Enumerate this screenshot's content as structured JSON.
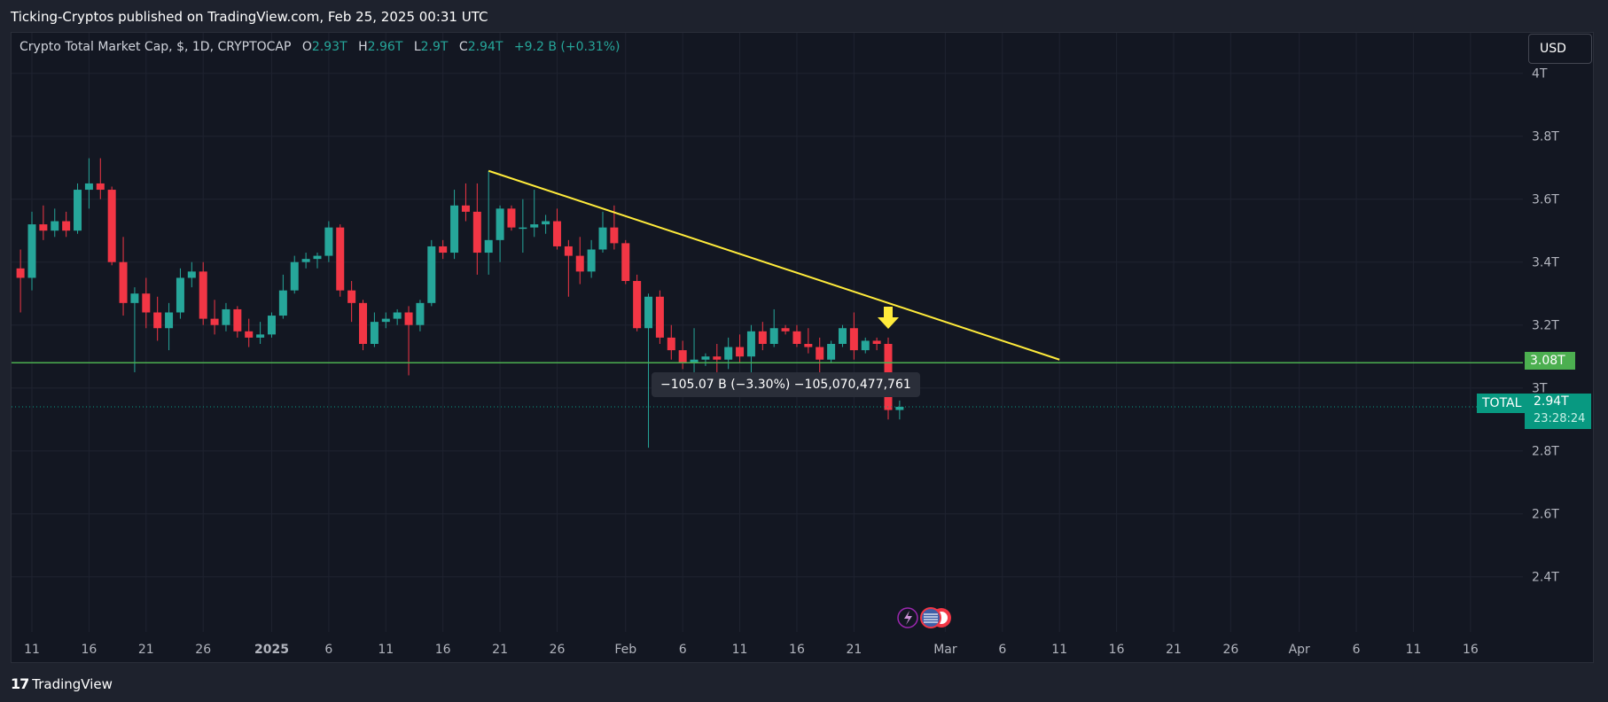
{
  "header": {
    "publisher": "Ticking-Cryptos published on TradingView.com, Feb 25, 2025 00:31 UTC"
  },
  "legend": {
    "title": "Crypto Total Market Cap, $, 1D, CRYPTOCAP",
    "open_label": "O",
    "open": "2.93T",
    "high_label": "H",
    "high": "2.96T",
    "low_label": "L",
    "low": "2.9T",
    "close_label": "C",
    "close": "2.94T",
    "change": "+9.2 B (+0.31%)"
  },
  "currency_button": "USD",
  "footer": {
    "logo": "17",
    "brand": "TradingView"
  },
  "annotation": {
    "measure_label": "−105.07 B (−3.30%) −105,070,477,761"
  },
  "price_tags": {
    "support_level": "3.08T",
    "symbol": "TOTAL",
    "last_price": "2.94T",
    "countdown": "23:28:24"
  },
  "colors": {
    "background": "#131722",
    "up": "#26a69a",
    "down": "#f23645",
    "trendline": "#ffeb3b",
    "support": "#4caf50",
    "arrow": "#ffeb3b"
  },
  "chart_data": {
    "type": "candlestick",
    "symbol": "CRYPTOCAP:TOTAL",
    "interval": "1D",
    "unit": "T (trillion USD)",
    "y_ticks": [
      2.4,
      2.6,
      2.8,
      3.0,
      3.2,
      3.4,
      3.6,
      3.8,
      4.0
    ],
    "y_tick_labels": [
      "2.4T",
      "2.6T",
      "2.8T",
      "3T",
      "3.2T",
      "3.4T",
      "3.6T",
      "3.8T",
      "4T"
    ],
    "x_tick_labels": [
      {
        "date": "2024-12-11",
        "label": "11"
      },
      {
        "date": "2024-12-16",
        "label": "16"
      },
      {
        "date": "2024-12-21",
        "label": "21"
      },
      {
        "date": "2024-12-26",
        "label": "26"
      },
      {
        "date": "2025-01-01",
        "label": "2025",
        "bold": true
      },
      {
        "date": "2025-01-06",
        "label": "6"
      },
      {
        "date": "2025-01-11",
        "label": "11"
      },
      {
        "date": "2025-01-16",
        "label": "16"
      },
      {
        "date": "2025-01-21",
        "label": "21"
      },
      {
        "date": "2025-01-26",
        "label": "26"
      },
      {
        "date": "2025-02-01",
        "label": "Feb"
      },
      {
        "date": "2025-02-06",
        "label": "6"
      },
      {
        "date": "2025-02-11",
        "label": "11"
      },
      {
        "date": "2025-02-16",
        "label": "16"
      },
      {
        "date": "2025-02-21",
        "label": "21"
      },
      {
        "date": "2025-03-01",
        "label": "Mar"
      },
      {
        "date": "2025-03-06",
        "label": "6"
      },
      {
        "date": "2025-03-11",
        "label": "11"
      },
      {
        "date": "2025-03-16",
        "label": "16"
      },
      {
        "date": "2025-03-21",
        "label": "21"
      },
      {
        "date": "2025-03-26",
        "label": "26"
      },
      {
        "date": "2025-04-01",
        "label": "Apr"
      },
      {
        "date": "2025-04-06",
        "label": "6"
      },
      {
        "date": "2025-04-11",
        "label": "11"
      },
      {
        "date": "2025-04-16",
        "label": "16"
      }
    ],
    "ohlc": [
      {
        "date": "2024-12-10",
        "o": 3.38,
        "h": 3.44,
        "l": 3.24,
        "c": 3.35
      },
      {
        "date": "2024-12-11",
        "o": 3.35,
        "h": 3.56,
        "l": 3.31,
        "c": 3.52
      },
      {
        "date": "2024-12-12",
        "o": 3.52,
        "h": 3.58,
        "l": 3.47,
        "c": 3.5
      },
      {
        "date": "2024-12-13",
        "o": 3.5,
        "h": 3.57,
        "l": 3.48,
        "c": 3.53
      },
      {
        "date": "2024-12-14",
        "o": 3.53,
        "h": 3.56,
        "l": 3.48,
        "c": 3.5
      },
      {
        "date": "2024-12-15",
        "o": 3.5,
        "h": 3.65,
        "l": 3.49,
        "c": 3.63
      },
      {
        "date": "2024-12-16",
        "o": 3.63,
        "h": 3.73,
        "l": 3.57,
        "c": 3.65
      },
      {
        "date": "2024-12-17",
        "o": 3.65,
        "h": 3.73,
        "l": 3.6,
        "c": 3.63
      },
      {
        "date": "2024-12-18",
        "o": 3.63,
        "h": 3.64,
        "l": 3.39,
        "c": 3.4
      },
      {
        "date": "2024-12-19",
        "o": 3.4,
        "h": 3.48,
        "l": 3.23,
        "c": 3.27
      },
      {
        "date": "2024-12-20",
        "o": 3.27,
        "h": 3.32,
        "l": 3.05,
        "c": 3.3
      },
      {
        "date": "2024-12-21",
        "o": 3.3,
        "h": 3.35,
        "l": 3.19,
        "c": 3.24
      },
      {
        "date": "2024-12-22",
        "o": 3.24,
        "h": 3.29,
        "l": 3.15,
        "c": 3.19
      },
      {
        "date": "2024-12-23",
        "o": 3.19,
        "h": 3.27,
        "l": 3.12,
        "c": 3.24
      },
      {
        "date": "2024-12-24",
        "o": 3.24,
        "h": 3.38,
        "l": 3.22,
        "c": 3.35
      },
      {
        "date": "2024-12-25",
        "o": 3.35,
        "h": 3.4,
        "l": 3.32,
        "c": 3.37
      },
      {
        "date": "2024-12-26",
        "o": 3.37,
        "h": 3.4,
        "l": 3.2,
        "c": 3.22
      },
      {
        "date": "2024-12-27",
        "o": 3.22,
        "h": 3.28,
        "l": 3.17,
        "c": 3.2
      },
      {
        "date": "2024-12-28",
        "o": 3.2,
        "h": 3.27,
        "l": 3.18,
        "c": 3.25
      },
      {
        "date": "2024-12-29",
        "o": 3.25,
        "h": 3.26,
        "l": 3.16,
        "c": 3.18
      },
      {
        "date": "2024-12-30",
        "o": 3.18,
        "h": 3.22,
        "l": 3.13,
        "c": 3.16
      },
      {
        "date": "2024-12-31",
        "o": 3.16,
        "h": 3.21,
        "l": 3.14,
        "c": 3.17
      },
      {
        "date": "2025-01-01",
        "o": 3.17,
        "h": 3.24,
        "l": 3.16,
        "c": 3.23
      },
      {
        "date": "2025-01-02",
        "o": 3.23,
        "h": 3.36,
        "l": 3.22,
        "c": 3.31
      },
      {
        "date": "2025-01-03",
        "o": 3.31,
        "h": 3.42,
        "l": 3.3,
        "c": 3.4
      },
      {
        "date": "2025-01-04",
        "o": 3.4,
        "h": 3.43,
        "l": 3.38,
        "c": 3.41
      },
      {
        "date": "2025-01-05",
        "o": 3.41,
        "h": 3.43,
        "l": 3.38,
        "c": 3.42
      },
      {
        "date": "2025-01-06",
        "o": 3.42,
        "h": 3.53,
        "l": 3.4,
        "c": 3.51
      },
      {
        "date": "2025-01-07",
        "o": 3.51,
        "h": 3.52,
        "l": 3.29,
        "c": 3.31
      },
      {
        "date": "2025-01-08",
        "o": 3.31,
        "h": 3.34,
        "l": 3.21,
        "c": 3.27
      },
      {
        "date": "2025-01-09",
        "o": 3.27,
        "h": 3.28,
        "l": 3.12,
        "c": 3.14
      },
      {
        "date": "2025-01-10",
        "o": 3.14,
        "h": 3.24,
        "l": 3.13,
        "c": 3.21
      },
      {
        "date": "2025-01-11",
        "o": 3.21,
        "h": 3.24,
        "l": 3.19,
        "c": 3.22
      },
      {
        "date": "2025-01-12",
        "o": 3.22,
        "h": 3.25,
        "l": 3.2,
        "c": 3.24
      },
      {
        "date": "2025-01-13",
        "o": 3.24,
        "h": 3.26,
        "l": 3.04,
        "c": 3.2
      },
      {
        "date": "2025-01-14",
        "o": 3.2,
        "h": 3.28,
        "l": 3.18,
        "c": 3.27
      },
      {
        "date": "2025-01-15",
        "o": 3.27,
        "h": 3.47,
        "l": 3.26,
        "c": 3.45
      },
      {
        "date": "2025-01-16",
        "o": 3.45,
        "h": 3.47,
        "l": 3.41,
        "c": 3.43
      },
      {
        "date": "2025-01-17",
        "o": 3.43,
        "h": 3.63,
        "l": 3.41,
        "c": 3.58
      },
      {
        "date": "2025-01-18",
        "o": 3.58,
        "h": 3.65,
        "l": 3.53,
        "c": 3.56
      },
      {
        "date": "2025-01-19",
        "o": 3.56,
        "h": 3.65,
        "l": 3.36,
        "c": 3.43
      },
      {
        "date": "2025-01-20",
        "o": 3.43,
        "h": 3.69,
        "l": 3.36,
        "c": 3.47
      },
      {
        "date": "2025-01-21",
        "o": 3.47,
        "h": 3.58,
        "l": 3.4,
        "c": 3.57
      },
      {
        "date": "2025-01-22",
        "o": 3.57,
        "h": 3.58,
        "l": 3.5,
        "c": 3.51
      },
      {
        "date": "2025-01-23",
        "o": 3.51,
        "h": 3.6,
        "l": 3.43,
        "c": 3.51
      },
      {
        "date": "2025-01-24",
        "o": 3.51,
        "h": 3.63,
        "l": 3.48,
        "c": 3.52
      },
      {
        "date": "2025-01-25",
        "o": 3.52,
        "h": 3.55,
        "l": 3.49,
        "c": 3.53
      },
      {
        "date": "2025-01-26",
        "o": 3.53,
        "h": 3.57,
        "l": 3.44,
        "c": 3.45
      },
      {
        "date": "2025-01-27",
        "o": 3.45,
        "h": 3.47,
        "l": 3.29,
        "c": 3.42
      },
      {
        "date": "2025-01-28",
        "o": 3.42,
        "h": 3.48,
        "l": 3.33,
        "c": 3.37
      },
      {
        "date": "2025-01-29",
        "o": 3.37,
        "h": 3.47,
        "l": 3.35,
        "c": 3.44
      },
      {
        "date": "2025-01-30",
        "o": 3.44,
        "h": 3.56,
        "l": 3.43,
        "c": 3.51
      },
      {
        "date": "2025-01-31",
        "o": 3.51,
        "h": 3.58,
        "l": 3.44,
        "c": 3.46
      },
      {
        "date": "2025-02-01",
        "o": 3.46,
        "h": 3.47,
        "l": 3.33,
        "c": 3.34
      },
      {
        "date": "2025-02-02",
        "o": 3.34,
        "h": 3.36,
        "l": 3.18,
        "c": 3.19
      },
      {
        "date": "2025-02-03",
        "o": 3.19,
        "h": 3.3,
        "l": 2.81,
        "c": 3.29
      },
      {
        "date": "2025-02-04",
        "o": 3.29,
        "h": 3.31,
        "l": 3.14,
        "c": 3.16
      },
      {
        "date": "2025-02-05",
        "o": 3.16,
        "h": 3.2,
        "l": 3.09,
        "c": 3.12
      },
      {
        "date": "2025-02-06",
        "o": 3.12,
        "h": 3.15,
        "l": 3.06,
        "c": 3.08
      },
      {
        "date": "2025-02-07",
        "o": 3.08,
        "h": 3.19,
        "l": 3.05,
        "c": 3.09
      },
      {
        "date": "2025-02-08",
        "o": 3.09,
        "h": 3.11,
        "l": 3.07,
        "c": 3.1
      },
      {
        "date": "2025-02-09",
        "o": 3.1,
        "h": 3.14,
        "l": 3.05,
        "c": 3.09
      },
      {
        "date": "2025-02-10",
        "o": 3.09,
        "h": 3.16,
        "l": 3.06,
        "c": 3.13
      },
      {
        "date": "2025-02-11",
        "o": 3.13,
        "h": 3.17,
        "l": 3.08,
        "c": 3.1
      },
      {
        "date": "2025-02-12",
        "o": 3.1,
        "h": 3.2,
        "l": 3.05,
        "c": 3.18
      },
      {
        "date": "2025-02-13",
        "o": 3.18,
        "h": 3.21,
        "l": 3.12,
        "c": 3.14
      },
      {
        "date": "2025-02-14",
        "o": 3.14,
        "h": 3.25,
        "l": 3.13,
        "c": 3.19
      },
      {
        "date": "2025-02-15",
        "o": 3.19,
        "h": 3.2,
        "l": 3.17,
        "c": 3.18
      },
      {
        "date": "2025-02-16",
        "o": 3.18,
        "h": 3.2,
        "l": 3.13,
        "c": 3.14
      },
      {
        "date": "2025-02-17",
        "o": 3.14,
        "h": 3.19,
        "l": 3.11,
        "c": 3.13
      },
      {
        "date": "2025-02-18",
        "o": 3.13,
        "h": 3.16,
        "l": 3.04,
        "c": 3.09
      },
      {
        "date": "2025-02-19",
        "o": 3.09,
        "h": 3.15,
        "l": 3.08,
        "c": 3.14
      },
      {
        "date": "2025-02-20",
        "o": 3.14,
        "h": 3.2,
        "l": 3.13,
        "c": 3.19
      },
      {
        "date": "2025-02-21",
        "o": 3.19,
        "h": 3.24,
        "l": 3.09,
        "c": 3.12
      },
      {
        "date": "2025-02-22",
        "o": 3.12,
        "h": 3.16,
        "l": 3.11,
        "c": 3.15
      },
      {
        "date": "2025-02-23",
        "o": 3.15,
        "h": 3.16,
        "l": 3.12,
        "c": 3.14
      },
      {
        "date": "2025-02-24",
        "o": 3.14,
        "h": 3.16,
        "l": 2.9,
        "c": 2.93
      },
      {
        "date": "2025-02-25",
        "o": 2.93,
        "h": 2.96,
        "l": 2.9,
        "c": 2.94
      }
    ],
    "trendline": {
      "start": {
        "date": "2025-01-20",
        "price": 3.69
      },
      "end": {
        "date": "2025-03-11",
        "price": 3.09
      }
    },
    "support_line": {
      "price": 3.08
    },
    "last_price": 2.94
  }
}
